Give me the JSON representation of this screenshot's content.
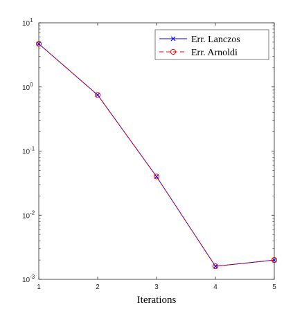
{
  "chart_data": {
    "type": "line",
    "title": "",
    "xlabel": "Iterations",
    "ylabel": "",
    "x": [
      1,
      2,
      3,
      4,
      5
    ],
    "xlim": [
      1,
      5
    ],
    "ylim": [
      0.001,
      10
    ],
    "yscale": "log",
    "x_ticks": [
      "1",
      "2",
      "3",
      "4",
      "5"
    ],
    "y_ticks": [
      {
        "base": "10",
        "exp": "-3",
        "value": 0.001
      },
      {
        "base": "10",
        "exp": "-2",
        "value": 0.01
      },
      {
        "base": "10",
        "exp": "-1",
        "value": 0.1
      },
      {
        "base": "10",
        "exp": "0",
        "value": 1
      },
      {
        "base": "10",
        "exp": "1",
        "value": 10
      }
    ],
    "grid": false,
    "legend_position": "top-right",
    "series": [
      {
        "name": "Err. Lanczos",
        "values": [
          4.7,
          0.75,
          0.04,
          0.0016,
          0.002
        ],
        "color": "#0000ff",
        "marker": "x",
        "line_style": "solid"
      },
      {
        "name": "Err. Arnoldi",
        "values": [
          4.7,
          0.75,
          0.04,
          0.0016,
          0.002
        ],
        "color": "#ff0000",
        "marker": "o",
        "line_style": "dashed"
      }
    ]
  }
}
